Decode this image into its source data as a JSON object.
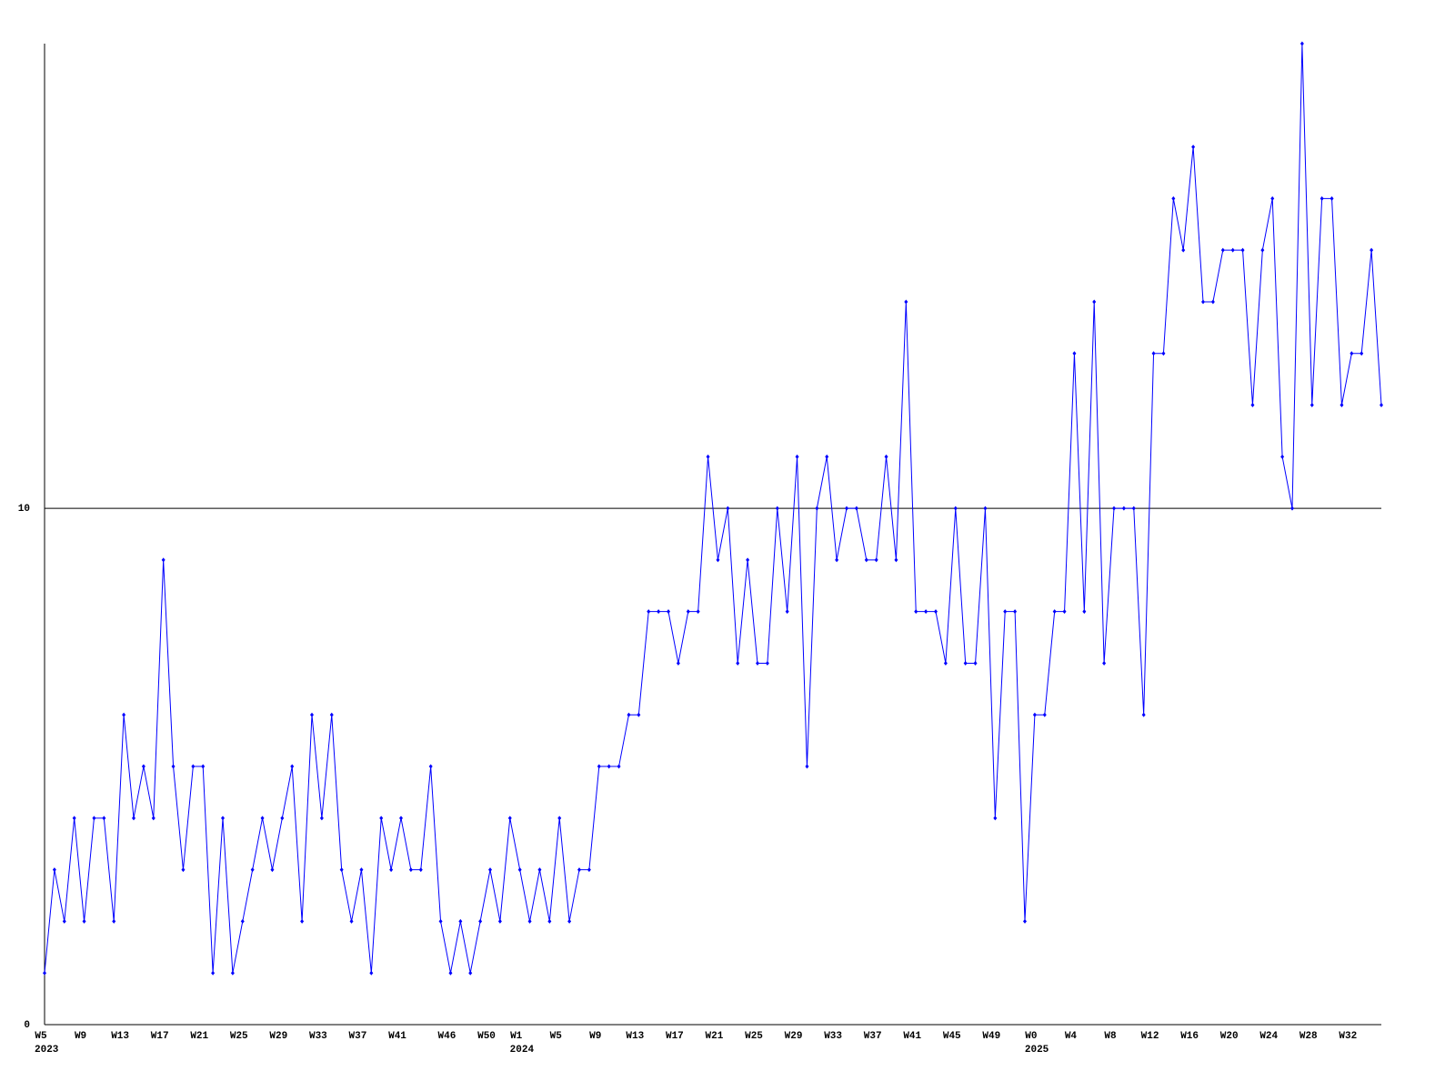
{
  "chart_data": {
    "type": "line",
    "categories": [
      "W5",
      null,
      null,
      null,
      "W9",
      null,
      null,
      null,
      "W13",
      null,
      null,
      null,
      "W17",
      null,
      null,
      null,
      "W21",
      null,
      null,
      null,
      "W25",
      null,
      null,
      null,
      "W29",
      null,
      null,
      null,
      "W33",
      null,
      null,
      null,
      "W37",
      null,
      null,
      null,
      "W41",
      null,
      null,
      null,
      null,
      "W46",
      null,
      null,
      null,
      "W50",
      null,
      null,
      "W1",
      null,
      null,
      null,
      "W5",
      null,
      null,
      null,
      "W9",
      null,
      null,
      null,
      "W13",
      null,
      null,
      null,
      "W17",
      null,
      null,
      null,
      "W21",
      null,
      null,
      null,
      "W25",
      null,
      null,
      null,
      "W29",
      null,
      null,
      null,
      "W33",
      null,
      null,
      null,
      "W37",
      null,
      null,
      null,
      "W41",
      null,
      null,
      null,
      "W45",
      null,
      null,
      null,
      "W49",
      null,
      null,
      null,
      "W0",
      null,
      null,
      null,
      "W4",
      null,
      null,
      null,
      "W8",
      null,
      null,
      null,
      "W12",
      null,
      null,
      null,
      "W16",
      null,
      null,
      null,
      "W20",
      null,
      null,
      null,
      "W24",
      null,
      null,
      null,
      "W28",
      null,
      null,
      null,
      "W32",
      null,
      null,
      null
    ],
    "years": [
      "2023",
      null,
      null,
      null,
      null,
      null,
      null,
      null,
      null,
      null,
      null,
      null,
      null,
      null,
      null,
      null,
      null,
      null,
      null,
      null,
      null,
      null,
      null,
      null,
      null,
      null,
      null,
      null,
      null,
      null,
      null,
      null,
      null,
      null,
      null,
      null,
      null,
      null,
      null,
      null,
      null,
      null,
      null,
      null,
      null,
      null,
      null,
      null,
      "2024",
      null,
      null,
      null,
      null,
      null,
      null,
      null,
      null,
      null,
      null,
      null,
      null,
      null,
      null,
      null,
      null,
      null,
      null,
      null,
      null,
      null,
      null,
      null,
      null,
      null,
      null,
      null,
      null,
      null,
      null,
      null,
      null,
      null,
      null,
      null,
      null,
      null,
      null,
      null,
      null,
      null,
      null,
      null,
      null,
      null,
      null,
      null,
      null,
      null,
      null,
      null,
      "2025",
      null,
      null,
      null,
      null,
      null,
      null,
      null,
      null,
      null,
      null,
      null,
      null,
      null,
      null,
      null,
      null,
      null,
      null,
      null,
      null,
      null,
      null,
      null,
      null,
      null,
      null,
      null,
      null,
      null,
      null,
      null,
      null,
      null,
      null,
      null
    ],
    "values": [
      1,
      3,
      2,
      4,
      2,
      4,
      4,
      2,
      6,
      4,
      5,
      4,
      9,
      5,
      3,
      5,
      5,
      1,
      4,
      1,
      2,
      3,
      4,
      3,
      4,
      5,
      2,
      6,
      4,
      6,
      3,
      2,
      3,
      1,
      4,
      3,
      4,
      3,
      3,
      5,
      2,
      1,
      2,
      1,
      2,
      3,
      2,
      4,
      3,
      2,
      3,
      2,
      4,
      2,
      3,
      3,
      5,
      5,
      5,
      6,
      6,
      8,
      8,
      8,
      7,
      8,
      8,
      11,
      9,
      10,
      7,
      9,
      7,
      7,
      10,
      8,
      11,
      5,
      10,
      11,
      9,
      10,
      10,
      9,
      9,
      11,
      9,
      14,
      8,
      8,
      8,
      7,
      10,
      7,
      7,
      10,
      4,
      8,
      8,
      2,
      6,
      6,
      8,
      8,
      13,
      8,
      14,
      7,
      10,
      10,
      10,
      6,
      13,
      13,
      16,
      15,
      17,
      14,
      14,
      15,
      15,
      15,
      12,
      15,
      16,
      11,
      10,
      19,
      12,
      16,
      16,
      12,
      13,
      13,
      15,
      12
    ],
    "color": "#0000ff",
    "ylim": [
      0,
      19
    ],
    "yticks": [
      0,
      10
    ],
    "grid": true
  }
}
